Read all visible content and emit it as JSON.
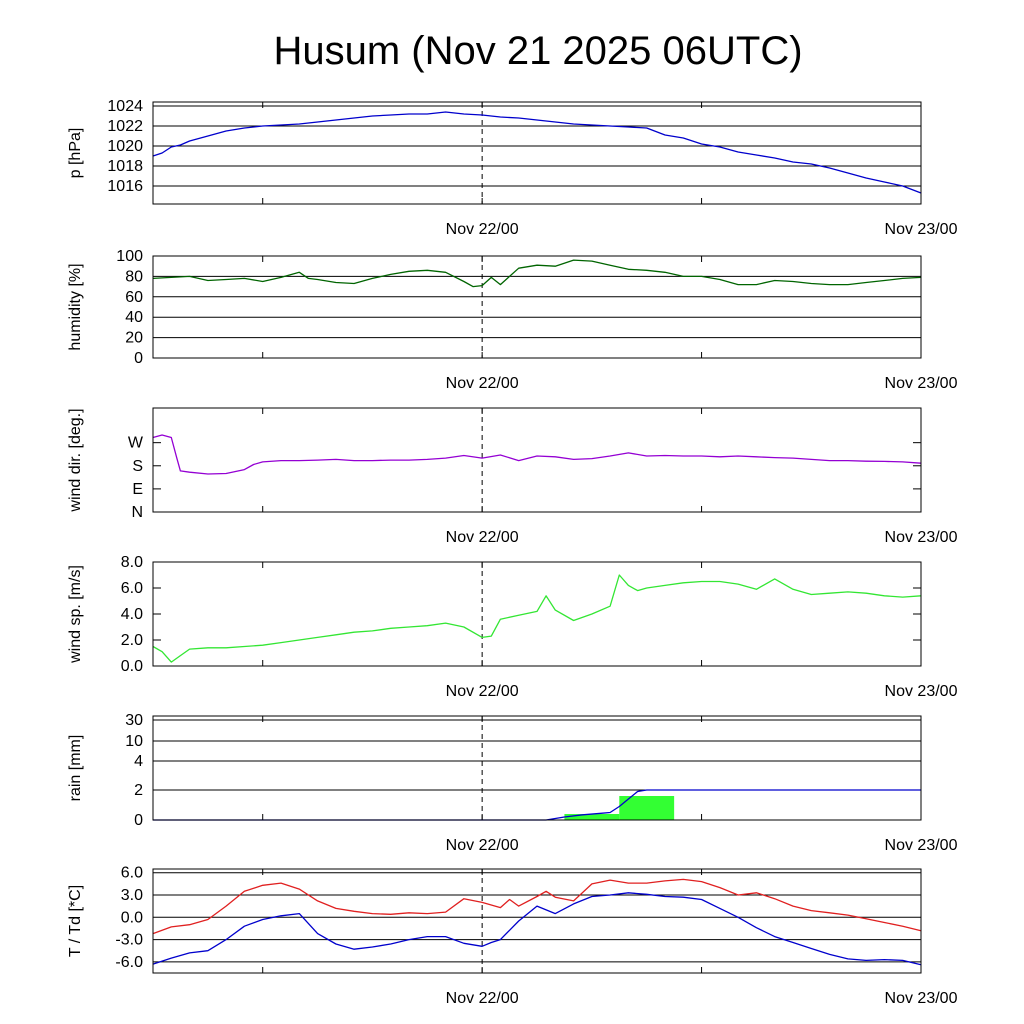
{
  "title": "Husum (Nov 21 2025 06UTC)",
  "x_axis": {
    "ticks": [
      {
        "label": "Nov 22/00",
        "t": 18
      },
      {
        "label": "Nov 23/00",
        "t": 42
      }
    ],
    "range": [
      0,
      42
    ],
    "minor_ticks": [
      6,
      18,
      30,
      42
    ],
    "dashed_line_at": 18
  },
  "chart_data": [
    {
      "id": "pressure",
      "type": "line",
      "ylabel": "p [hPa]",
      "ylim": [
        1014.2,
        1024.4
      ],
      "yticks": [
        1016,
        1018,
        1020,
        1022,
        1024
      ],
      "ytick_labels": [
        "1016",
        "1018",
        "1020",
        "1022",
        "1024"
      ],
      "grid": true,
      "series": [
        {
          "color": "#0000cc",
          "x": [
            0,
            0.5,
            1,
            1.5,
            2,
            3,
            4,
            5,
            6,
            7,
            8,
            9,
            10,
            11,
            12,
            13,
            14,
            15,
            16,
            17,
            18,
            19,
            20,
            21,
            22,
            23,
            24,
            25,
            26,
            27,
            28,
            29,
            30,
            31,
            32,
            33,
            34,
            35,
            36,
            37,
            38,
            39,
            40,
            41,
            42
          ],
          "y": [
            1019,
            1019.3,
            1019.9,
            1020.1,
            1020.5,
            1021,
            1021.5,
            1021.8,
            1022,
            1022.1,
            1022.2,
            1022.4,
            1022.6,
            1022.8,
            1023.0,
            1023.1,
            1023.2,
            1023.2,
            1023.4,
            1023.2,
            1023.1,
            1022.9,
            1022.8,
            1022.6,
            1022.4,
            1022.2,
            1022.1,
            1022.0,
            1021.9,
            1021.8,
            1021.1,
            1020.8,
            1020.2,
            1019.9,
            1019.4,
            1019.1,
            1018.8,
            1018.4,
            1018.2,
            1017.8,
            1017.3,
            1016.8,
            1016.4,
            1016.0,
            1015.3
          ]
        }
      ]
    },
    {
      "id": "humidity",
      "type": "line",
      "ylabel": "humidity [%]",
      "ylim": [
        0,
        100
      ],
      "yticks": [
        0,
        20,
        40,
        60,
        80,
        100
      ],
      "ytick_labels": [
        "0",
        "20",
        "40",
        "60",
        "80",
        "100"
      ],
      "grid": true,
      "series": [
        {
          "color": "#006400",
          "x": [
            0,
            1,
            2,
            3,
            4,
            5,
            6,
            7,
            8,
            8.5,
            9,
            10,
            11,
            12,
            13,
            14,
            15,
            16,
            17,
            17.5,
            18,
            18.5,
            19,
            20,
            21,
            22,
            23,
            24,
            25,
            26,
            27,
            28,
            29,
            30,
            31,
            32,
            33,
            34,
            35,
            36,
            37,
            38,
            39,
            40,
            41,
            42
          ],
          "y": [
            78,
            79,
            80,
            76,
            77,
            78,
            75,
            79,
            84,
            78,
            77,
            74,
            73,
            78,
            82,
            85,
            86,
            84,
            75,
            70,
            71,
            79,
            72,
            88,
            91,
            90,
            96,
            95,
            91,
            87,
            86,
            84,
            80,
            80,
            77,
            72,
            72,
            76,
            75,
            73,
            72,
            72,
            74,
            76,
            78,
            79
          ]
        }
      ]
    },
    {
      "id": "wind_dir",
      "type": "line",
      "ylabel": "wind dir. [deg.]",
      "ylim": [
        0,
        405
      ],
      "yticks": [
        0,
        90,
        180,
        270
      ],
      "ytick_labels": [
        "N",
        "E",
        "S",
        "W"
      ],
      "grid": false,
      "series": [
        {
          "color": "#9400d3",
          "x": [
            0,
            0.5,
            1,
            1.3,
            1.5,
            2,
            3,
            4,
            5,
            5.5,
            6,
            7,
            8,
            9,
            10,
            11,
            12,
            13,
            14,
            15,
            16,
            17,
            18,
            19,
            20,
            21,
            22,
            23,
            24,
            25,
            26,
            27,
            28,
            29,
            30,
            31,
            32,
            33,
            34,
            35,
            36,
            37,
            38,
            39,
            40,
            41,
            42
          ],
          "y": [
            290,
            300,
            290,
            210,
            160,
            155,
            148,
            150,
            165,
            185,
            195,
            200,
            200,
            202,
            205,
            200,
            200,
            202,
            202,
            205,
            210,
            220,
            210,
            222,
            200,
            218,
            215,
            205,
            208,
            218,
            230,
            218,
            220,
            218,
            218,
            215,
            218,
            215,
            212,
            210,
            205,
            200,
            200,
            198,
            197,
            195,
            190
          ]
        }
      ]
    },
    {
      "id": "wind_speed",
      "type": "line",
      "ylabel": "wind sp. [m/s]",
      "ylim": [
        0,
        8
      ],
      "yticks": [
        0,
        2,
        4,
        6,
        8
      ],
      "ytick_labels": [
        "0.0",
        "2.0",
        "4.0",
        "6.0",
        "8.0"
      ],
      "grid": false,
      "series": [
        {
          "color": "#33e633",
          "x": [
            0,
            0.5,
            1,
            1.5,
            2,
            3,
            4,
            5,
            6,
            7,
            8,
            9,
            10,
            11,
            12,
            13,
            14,
            15,
            16,
            17,
            18,
            18.5,
            19,
            20,
            21,
            21.5,
            22,
            23,
            24,
            25,
            25.5,
            26,
            26.5,
            27,
            28,
            29,
            30,
            31,
            32,
            33,
            34,
            35,
            36,
            37,
            38,
            39,
            40,
            41,
            42
          ],
          "y": [
            1.5,
            1.1,
            0.3,
            0.8,
            1.3,
            1.4,
            1.4,
            1.5,
            1.6,
            1.8,
            2.0,
            2.2,
            2.4,
            2.6,
            2.7,
            2.9,
            3.0,
            3.1,
            3.3,
            3.0,
            2.2,
            2.3,
            3.6,
            3.9,
            4.2,
            5.4,
            4.3,
            3.5,
            4.0,
            4.6,
            7.0,
            6.2,
            5.8,
            6.0,
            6.2,
            6.4,
            6.5,
            6.5,
            6.3,
            5.9,
            6.7,
            5.9,
            5.5,
            5.6,
            5.7,
            5.6,
            5.4,
            5.3,
            5.4
          ]
        }
      ]
    },
    {
      "id": "rain",
      "type": "bar+line",
      "ylabel": "rain [mm]",
      "yticks": [
        0,
        2,
        4,
        10,
        30
      ],
      "ytick_labels": [
        "0",
        "2",
        "4",
        "10",
        "30"
      ],
      "grid": true,
      "bars": {
        "color": "#33ff33",
        "items": [
          {
            "x0": 22.5,
            "x1": 25.5,
            "y": 0.4
          },
          {
            "x0": 25.5,
            "x1": 28.5,
            "y": 1.6
          }
        ]
      },
      "series": [
        {
          "color": "#0000cc",
          "x": [
            0,
            21.5,
            22.5,
            23.5,
            24.5,
            25,
            25.5,
            26,
            26.5,
            27,
            28,
            30,
            35,
            42
          ],
          "y": [
            0,
            0,
            0.2,
            0.35,
            0.45,
            0.5,
            0.9,
            1.4,
            1.9,
            2.0,
            2.0,
            2.0,
            2.0,
            2.0
          ]
        }
      ]
    },
    {
      "id": "temperature",
      "type": "line",
      "ylabel": "T / Td [*C]",
      "ylim": [
        -7.5,
        6.5
      ],
      "yticks": [
        -6,
        -3,
        0,
        3,
        6
      ],
      "ytick_labels": [
        "-6.0",
        "-3.0",
        "0.0",
        "3.0",
        "6.0"
      ],
      "grid": true,
      "series": [
        {
          "color": "#e02020",
          "x": [
            0,
            1,
            2,
            3,
            4,
            5,
            6,
            7,
            8,
            9,
            10,
            11,
            12,
            13,
            14,
            15,
            16,
            17,
            18,
            19,
            19.5,
            20,
            21,
            21.5,
            22,
            23,
            24,
            25,
            26,
            27,
            28,
            29,
            30,
            31,
            32,
            33,
            34,
            35,
            36,
            37,
            38,
            39,
            40,
            41,
            42
          ],
          "y": [
            -2.2,
            -1.3,
            -1.0,
            -0.3,
            1.5,
            3.5,
            4.3,
            4.6,
            3.8,
            2.2,
            1.2,
            0.8,
            0.5,
            0.4,
            0.6,
            0.5,
            0.7,
            2.5,
            2.0,
            1.3,
            2.4,
            1.5,
            2.8,
            3.5,
            2.7,
            2.2,
            4.5,
            5.0,
            4.6,
            4.6,
            4.9,
            5.1,
            4.8,
            4.0,
            3.0,
            3.3,
            2.5,
            1.5,
            0.9,
            0.6,
            0.3,
            -0.2,
            -0.7,
            -1.2,
            -1.8
          ]
        },
        {
          "color": "#0000cc",
          "x": [
            0,
            1,
            2,
            3,
            4,
            5,
            6,
            7,
            8,
            9,
            10,
            11,
            12,
            13,
            14,
            15,
            16,
            17,
            18,
            18.5,
            19,
            20,
            21,
            22,
            23,
            24,
            25,
            26,
            27,
            28,
            29,
            30,
            31,
            32,
            33,
            34,
            35,
            36,
            37,
            38,
            39,
            40,
            41,
            42
          ],
          "y": [
            -6.3,
            -5.5,
            -4.8,
            -4.5,
            -3.0,
            -1.2,
            -0.3,
            0.2,
            0.5,
            -2.2,
            -3.6,
            -4.3,
            -4.0,
            -3.6,
            -3.0,
            -2.6,
            -2.6,
            -3.5,
            -3.9,
            -3.4,
            -3.0,
            -0.5,
            1.5,
            0.5,
            1.8,
            2.8,
            3.0,
            3.3,
            3.1,
            2.8,
            2.7,
            2.4,
            1.2,
            0.0,
            -1.4,
            -2.6,
            -3.4,
            -4.2,
            -5.0,
            -5.6,
            -5.8,
            -5.7,
            -5.8,
            -6.4
          ]
        }
      ]
    }
  ]
}
